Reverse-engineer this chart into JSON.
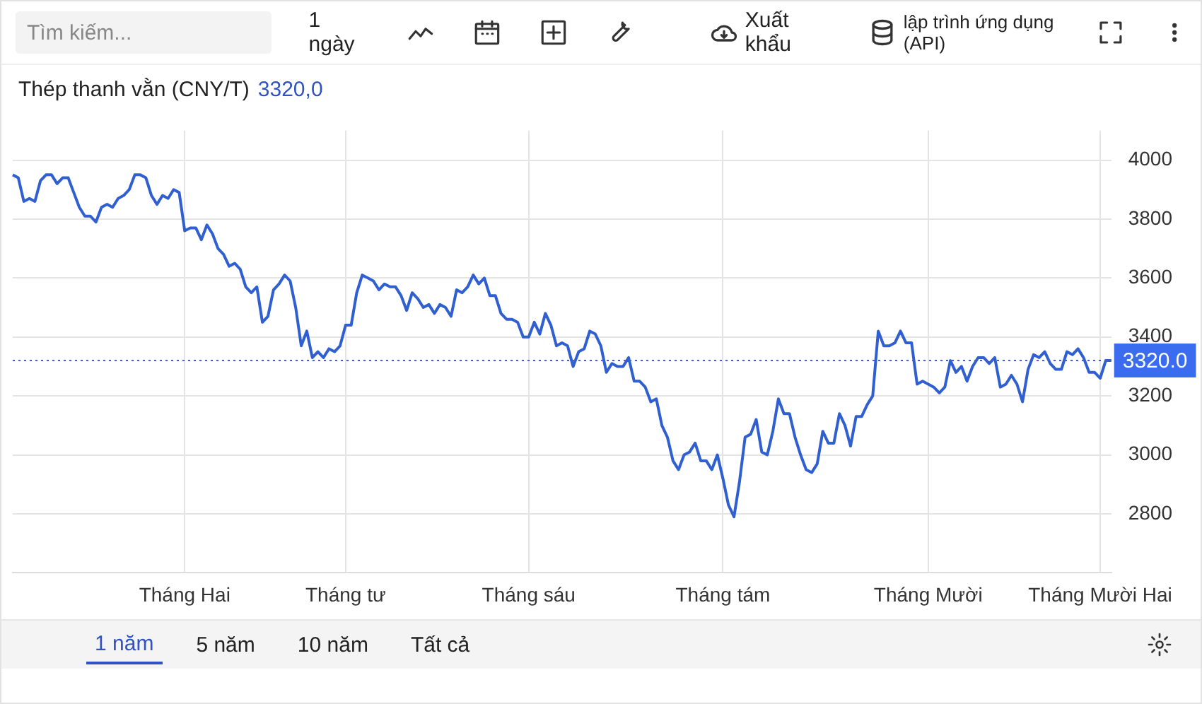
{
  "chart_data": {
    "type": "line",
    "title": "Thép thanh vằn (CNY/T)",
    "subtitle": "3320,0",
    "categories": [
      null,
      null,
      null,
      null,
      null,
      null,
      null,
      null,
      null,
      null,
      null,
      null,
      null,
      null,
      null,
      null,
      null,
      null,
      null,
      null,
      null,
      null,
      null,
      null,
      null,
      null,
      null,
      null,
      null,
      null,
      null,
      "Tháng Hai",
      null,
      null,
      null,
      null,
      null,
      null,
      null,
      null,
      null,
      null,
      null,
      null,
      null,
      null,
      null,
      null,
      null,
      null,
      null,
      null,
      null,
      null,
      null,
      null,
      null,
      null,
      null,
      null,
      "Tháng tư",
      null,
      null,
      null,
      null,
      null,
      null,
      null,
      null,
      null,
      null,
      null,
      null,
      null,
      null,
      null,
      null,
      null,
      null,
      null,
      null,
      null,
      null,
      null,
      null,
      null,
      null,
      null,
      null,
      null,
      null,
      null,
      null,
      "Tháng sáu",
      null,
      null,
      null,
      null,
      null,
      null,
      null,
      null,
      null,
      null,
      null,
      null,
      null,
      null,
      null,
      null,
      null,
      null,
      null,
      null,
      null,
      null,
      null,
      null,
      null,
      null,
      null,
      null,
      null,
      null,
      null,
      null,
      null,
      null,
      "Tháng tám",
      null,
      null,
      null,
      null,
      null,
      null,
      null,
      null,
      null,
      null,
      null,
      null,
      null,
      null,
      null,
      null,
      null,
      null,
      null,
      null,
      null,
      null,
      null,
      null,
      null,
      null,
      null,
      null,
      null,
      null,
      null,
      null,
      null,
      null,
      null,
      null,
      "Tháng Mười",
      null,
      null,
      null,
      null,
      null,
      null,
      null,
      null,
      null,
      null,
      null,
      null,
      null,
      null,
      null,
      null,
      null,
      null,
      null,
      null,
      null,
      null,
      null,
      null,
      null,
      null,
      null,
      null,
      null,
      null,
      "Tháng Mười Hai",
      null,
      null
    ],
    "series": [
      {
        "color": "#2f5fd0",
        "values": [
          3950,
          3940,
          3860,
          3870,
          3860,
          3930,
          3950,
          3950,
          3920,
          3940,
          3940,
          3890,
          3840,
          3810,
          3810,
          3790,
          3840,
          3850,
          3840,
          3870,
          3880,
          3900,
          3950,
          3950,
          3940,
          3880,
          3850,
          3880,
          3870,
          3900,
          3890,
          3760,
          3770,
          3770,
          3730,
          3780,
          3750,
          3700,
          3680,
          3640,
          3650,
          3630,
          3570,
          3550,
          3570,
          3450,
          3470,
          3560,
          3580,
          3610,
          3590,
          3500,
          3370,
          3420,
          3330,
          3350,
          3330,
          3360,
          3350,
          3370,
          3440,
          3440,
          3550,
          3610,
          3600,
          3590,
          3560,
          3580,
          3570,
          3570,
          3540,
          3490,
          3550,
          3530,
          3500,
          3510,
          3480,
          3510,
          3500,
          3470,
          3560,
          3550,
          3570,
          3610,
          3580,
          3600,
          3540,
          3540,
          3480,
          3460,
          3460,
          3450,
          3400,
          3400,
          3450,
          3410,
          3480,
          3440,
          3370,
          3380,
          3370,
          3300,
          3350,
          3360,
          3420,
          3410,
          3370,
          3280,
          3310,
          3300,
          3300,
          3330,
          3250,
          3250,
          3230,
          3180,
          3190,
          3100,
          3060,
          2980,
          2950,
          3000,
          3010,
          3040,
          2980,
          2980,
          2950,
          3000,
          2920,
          2830,
          2790,
          2910,
          3060,
          3070,
          3120,
          3010,
          3000,
          3080,
          3190,
          3140,
          3140,
          3060,
          3000,
          2950,
          2940,
          2970,
          3080,
          3040,
          3040,
          3140,
          3100,
          3030,
          3130,
          3130,
          3170,
          3200,
          3420,
          3370,
          3370,
          3380,
          3420,
          3380,
          3380,
          3240,
          3250,
          3240,
          3230,
          3210,
          3230,
          3320,
          3280,
          3300,
          3250,
          3300,
          3330,
          3330,
          3310,
          3330,
          3230,
          3240,
          3270,
          3240,
          3180,
          3290,
          3340,
          3330,
          3350,
          3310,
          3290,
          3290,
          3350,
          3340,
          3360,
          3330,
          3280,
          3280,
          3260,
          3320,
          3320
        ]
      }
    ],
    "ylim": [
      2600,
      4100
    ],
    "yticks": [
      2800,
      3000,
      3200,
      3400,
      3600,
      3800,
      4000
    ],
    "grid": true,
    "marker": "none",
    "line_style": "solid",
    "ref_lines": [
      {
        "axis": "y",
        "value": 3320,
        "label": "3320.0",
        "color": "#4a5fc1",
        "line_style": "dotted"
      }
    ],
    "annotations": [
      "Tìm kiếm...",
      "1 ngày",
      "Xuất khẩu",
      "lập trình ứng dụng (API)",
      "1 năm",
      "5 năm",
      "10 năm",
      "Tất cả"
    ]
  }
}
